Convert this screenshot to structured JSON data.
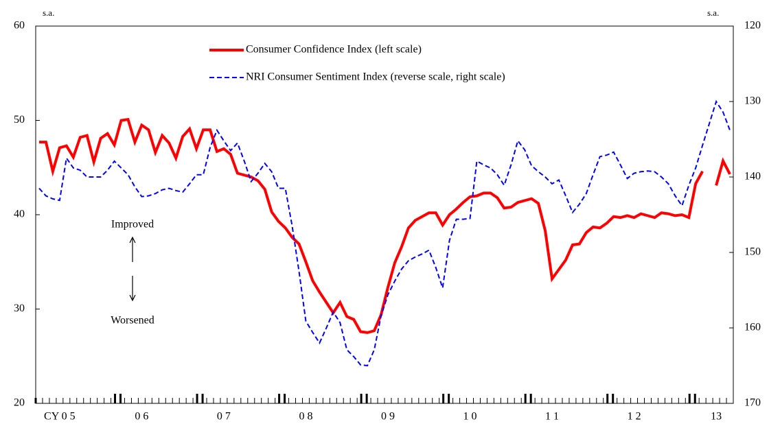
{
  "chart_data": {
    "type": "line",
    "annotations": {
      "left_unit": "s.a.",
      "right_unit": "s.a.",
      "up": "Improved",
      "down": "Worsened"
    },
    "categories": [
      null,
      null,
      null,
      "CY 0 5",
      null,
      null,
      null,
      null,
      null,
      null,
      null,
      null,
      null,
      null,
      null,
      "0 6",
      null,
      null,
      null,
      null,
      null,
      null,
      null,
      null,
      null,
      null,
      null,
      "0 7",
      null,
      null,
      null,
      null,
      null,
      null,
      null,
      null,
      null,
      null,
      null,
      "0 8",
      null,
      null,
      null,
      null,
      null,
      null,
      null,
      null,
      null,
      null,
      null,
      "0 9",
      null,
      null,
      null,
      null,
      null,
      null,
      null,
      null,
      null,
      null,
      null,
      "1 0",
      null,
      null,
      null,
      null,
      null,
      null,
      null,
      null,
      null,
      null,
      null,
      "1 1",
      null,
      null,
      null,
      null,
      null,
      null,
      null,
      null,
      null,
      null,
      null,
      "1 2",
      null,
      null,
      null,
      null,
      null,
      null,
      null,
      null,
      null,
      null,
      null,
      "13",
      null,
      null
    ],
    "series": [
      {
        "name": "Consumer Confidence Index (left scale)",
        "color": "#ff0000",
        "axis": "y",
        "values": [
          47.7,
          47.7,
          44.6,
          47.1,
          47.3,
          46.1,
          48.2,
          48.4,
          45.6,
          48.1,
          48.6,
          47.4,
          50.0,
          50.1,
          47.7,
          49.5,
          49.0,
          46.6,
          48.4,
          47.6,
          46.0,
          48.3,
          49.1,
          47.0,
          49.0,
          49.0,
          46.7,
          47.0,
          46.4,
          44.4,
          44.2,
          44.0,
          43.6,
          42.7,
          40.3,
          39.3,
          38.6,
          37.6,
          36.9,
          35.0,
          33.0,
          31.8,
          30.7,
          29.6,
          30.7,
          29.2,
          28.9,
          27.6,
          27.5,
          27.7,
          29.4,
          32.3,
          34.9,
          36.6,
          38.6,
          39.4,
          39.8,
          40.2,
          40.2,
          38.9,
          40.0,
          40.6,
          41.3,
          41.9,
          42.0,
          42.3,
          42.3,
          41.8,
          40.7,
          40.8,
          41.3,
          41.5,
          41.7,
          41.2,
          38.3,
          33.2,
          34.2,
          35.2,
          36.8,
          36.9,
          38.1,
          38.7,
          38.6,
          39.1,
          39.8,
          39.7,
          39.9,
          39.7,
          40.1,
          39.9,
          39.7,
          40.2,
          40.1,
          39.9,
          40.0,
          39.7,
          43.3,
          44.6,
          null,
          43.1,
          45.7,
          44.3
        ]
      },
      {
        "name": "NRI Consumer Sentiment Index (reverse scale, right scale)",
        "color": "#0000ff",
        "axis": "y2",
        "style": "dashed",
        "values": [
          141.5,
          142.5,
          142.9,
          143.1,
          137.5,
          138.8,
          139.1,
          140.0,
          140.0,
          140.0,
          139.1,
          137.9,
          138.8,
          139.7,
          141.3,
          142.6,
          142.5,
          142.2,
          141.7,
          141.5,
          141.8,
          142.0,
          140.9,
          139.7,
          139.7,
          136.1,
          133.8,
          135.2,
          136.5,
          135.5,
          137.9,
          140.6,
          139.5,
          138.2,
          139.3,
          141.5,
          141.5,
          146.5,
          152.5,
          159.1,
          160.6,
          162.0,
          160.0,
          157.9,
          159.3,
          162.9,
          163.8,
          164.9,
          165.0,
          162.9,
          158.4,
          155.6,
          153.8,
          152.2,
          151.1,
          150.6,
          150.2,
          149.7,
          152.0,
          154.7,
          148.4,
          145.6,
          145.6,
          145.5,
          137.9,
          138.4,
          138.8,
          139.7,
          141.1,
          138.4,
          135.2,
          136.4,
          138.5,
          139.3,
          140.0,
          140.9,
          140.4,
          142.5,
          144.7,
          143.6,
          142.2,
          139.7,
          137.3,
          137.1,
          136.7,
          138.4,
          140.2,
          139.5,
          139.3,
          139.2,
          139.3,
          140.0,
          140.9,
          142.5,
          143.8,
          141.1,
          138.8,
          135.8,
          132.9,
          130.0,
          131.4,
          133.8
        ]
      }
    ],
    "ylim": [
      20,
      60
    ],
    "yticks": [
      20,
      30,
      40,
      50,
      60
    ],
    "y2lim": [
      170,
      120
    ],
    "y2ticks": [
      120,
      130,
      140,
      150,
      160,
      170
    ],
    "grid": false
  }
}
